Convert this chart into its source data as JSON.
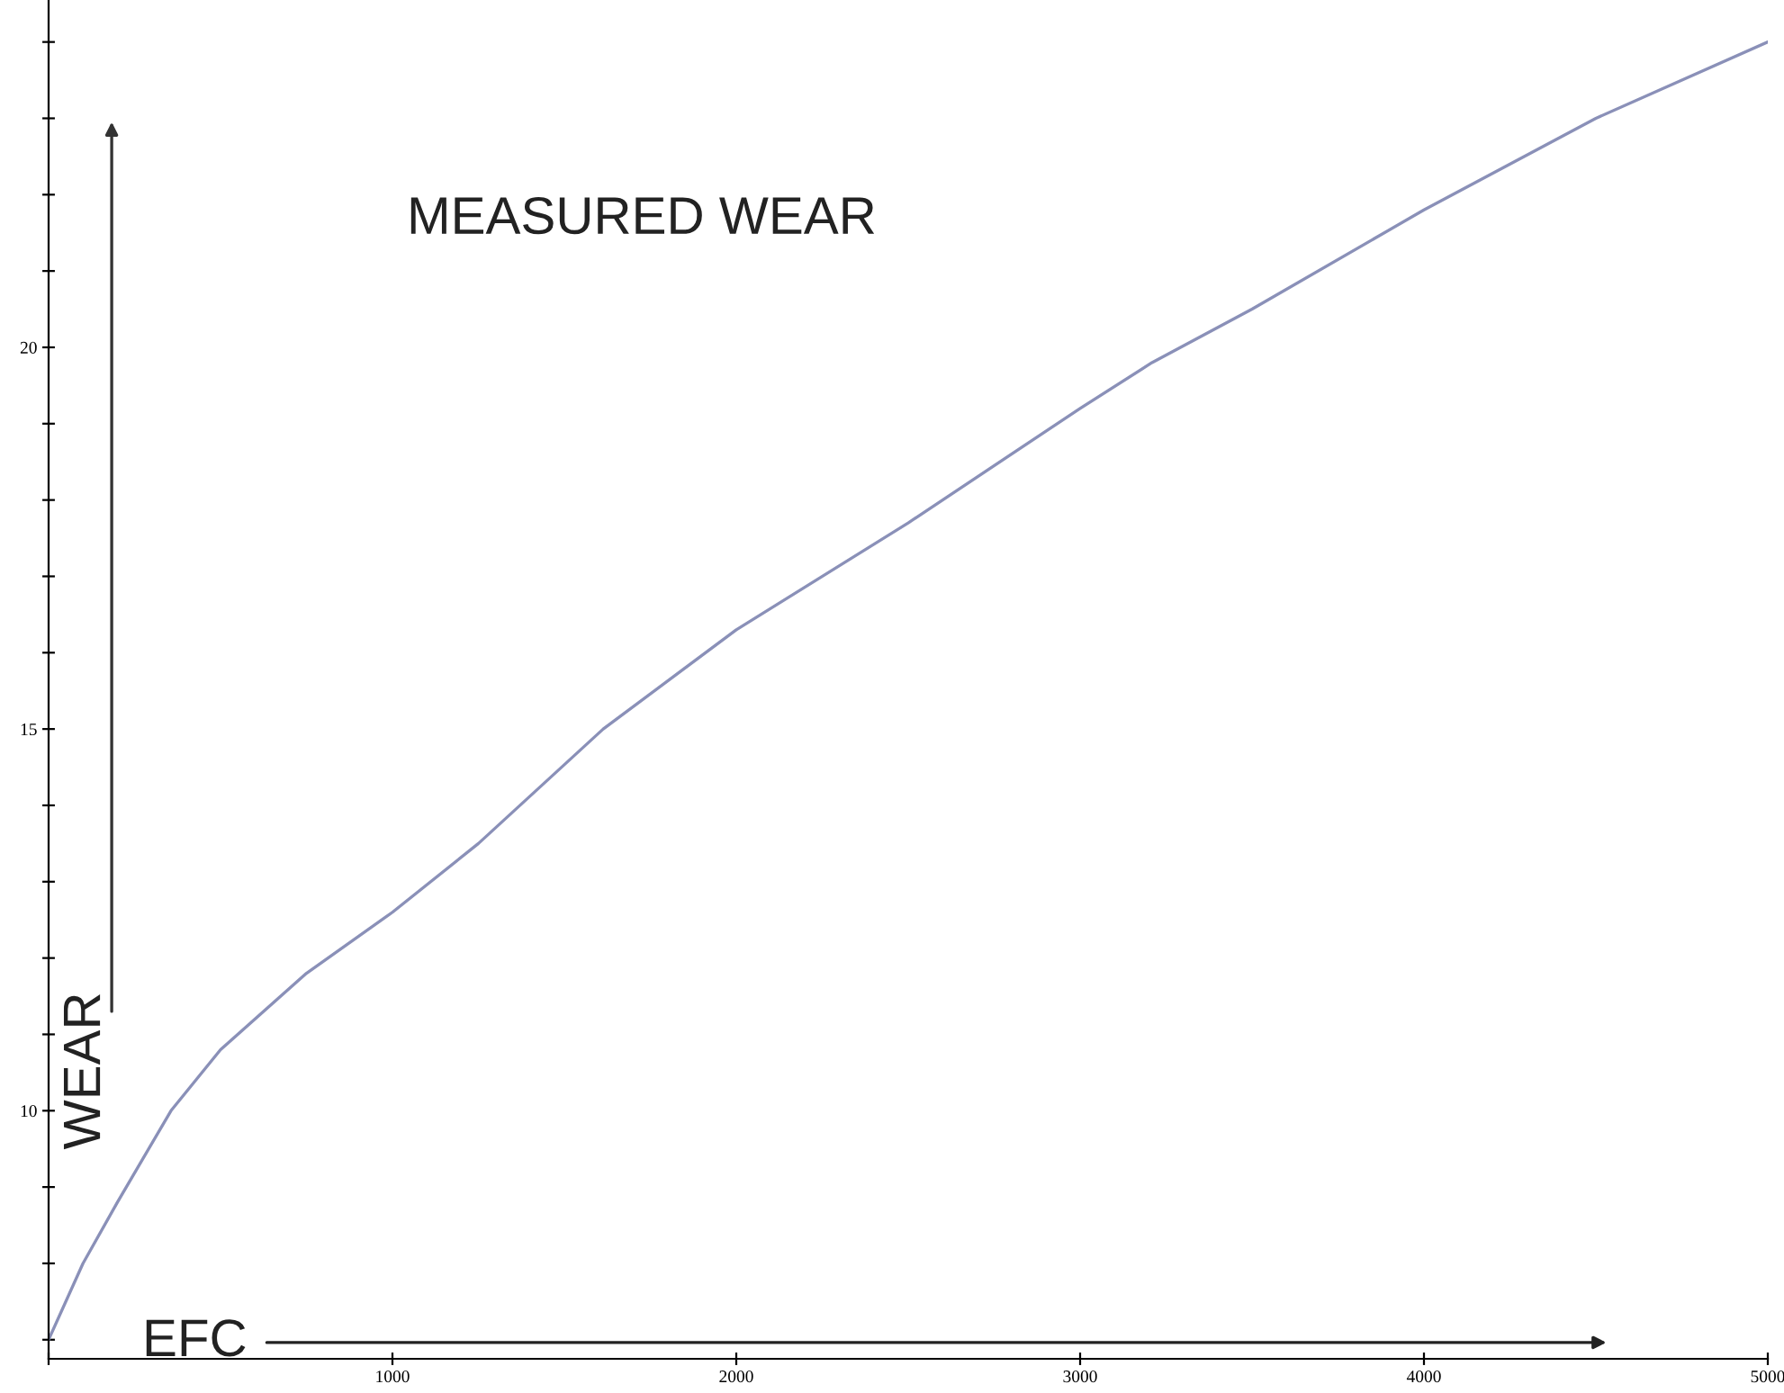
{
  "chart_data": {
    "type": "line",
    "title": "MEASURED WEAR",
    "xlabel": "EFC",
    "ylabel": "WEAR",
    "x": [
      0,
      100,
      200,
      356,
      500,
      750,
      1000,
      1250,
      1613,
      2000,
      2500,
      3000,
      3209,
      3500,
      4000,
      4500,
      5000
    ],
    "series": [
      {
        "color": "#8a90b8",
        "values": [
          7.0,
          8.0,
          8.8,
          10.0,
          10.8,
          11.8,
          12.6,
          13.5,
          15.0,
          16.3,
          17.7,
          19.2,
          19.8,
          20.5,
          21.8,
          23.0,
          24.0
        ]
      }
    ],
    "xlim": [
      0,
      5000
    ],
    "ylim": [
      6.75,
      24.55
    ],
    "xticks": [
      {
        "value": 0,
        "label": null
      },
      1000,
      2000,
      3000,
      4000,
      5000
    ],
    "yticks": [
      {
        "value": 7,
        "label": null
      },
      {
        "value": 8,
        "label": null
      },
      {
        "value": 9,
        "label": null
      },
      10,
      {
        "value": 11,
        "label": null
      },
      {
        "value": 12,
        "label": null
      },
      {
        "value": 13,
        "label": null
      },
      {
        "value": 14,
        "label": null
      },
      15,
      {
        "value": 16,
        "label": null
      },
      {
        "value": 17,
        "label": null
      },
      {
        "value": 18,
        "label": null
      },
      {
        "value": 19,
        "label": null
      },
      20,
      {
        "value": 21,
        "label": null
      },
      {
        "value": 22,
        "label": null
      },
      {
        "value": 23,
        "label": null
      },
      {
        "value": 24,
        "label": null
      }
    ],
    "grid": false,
    "legend": false,
    "marker": "none",
    "line_style": "solid"
  }
}
